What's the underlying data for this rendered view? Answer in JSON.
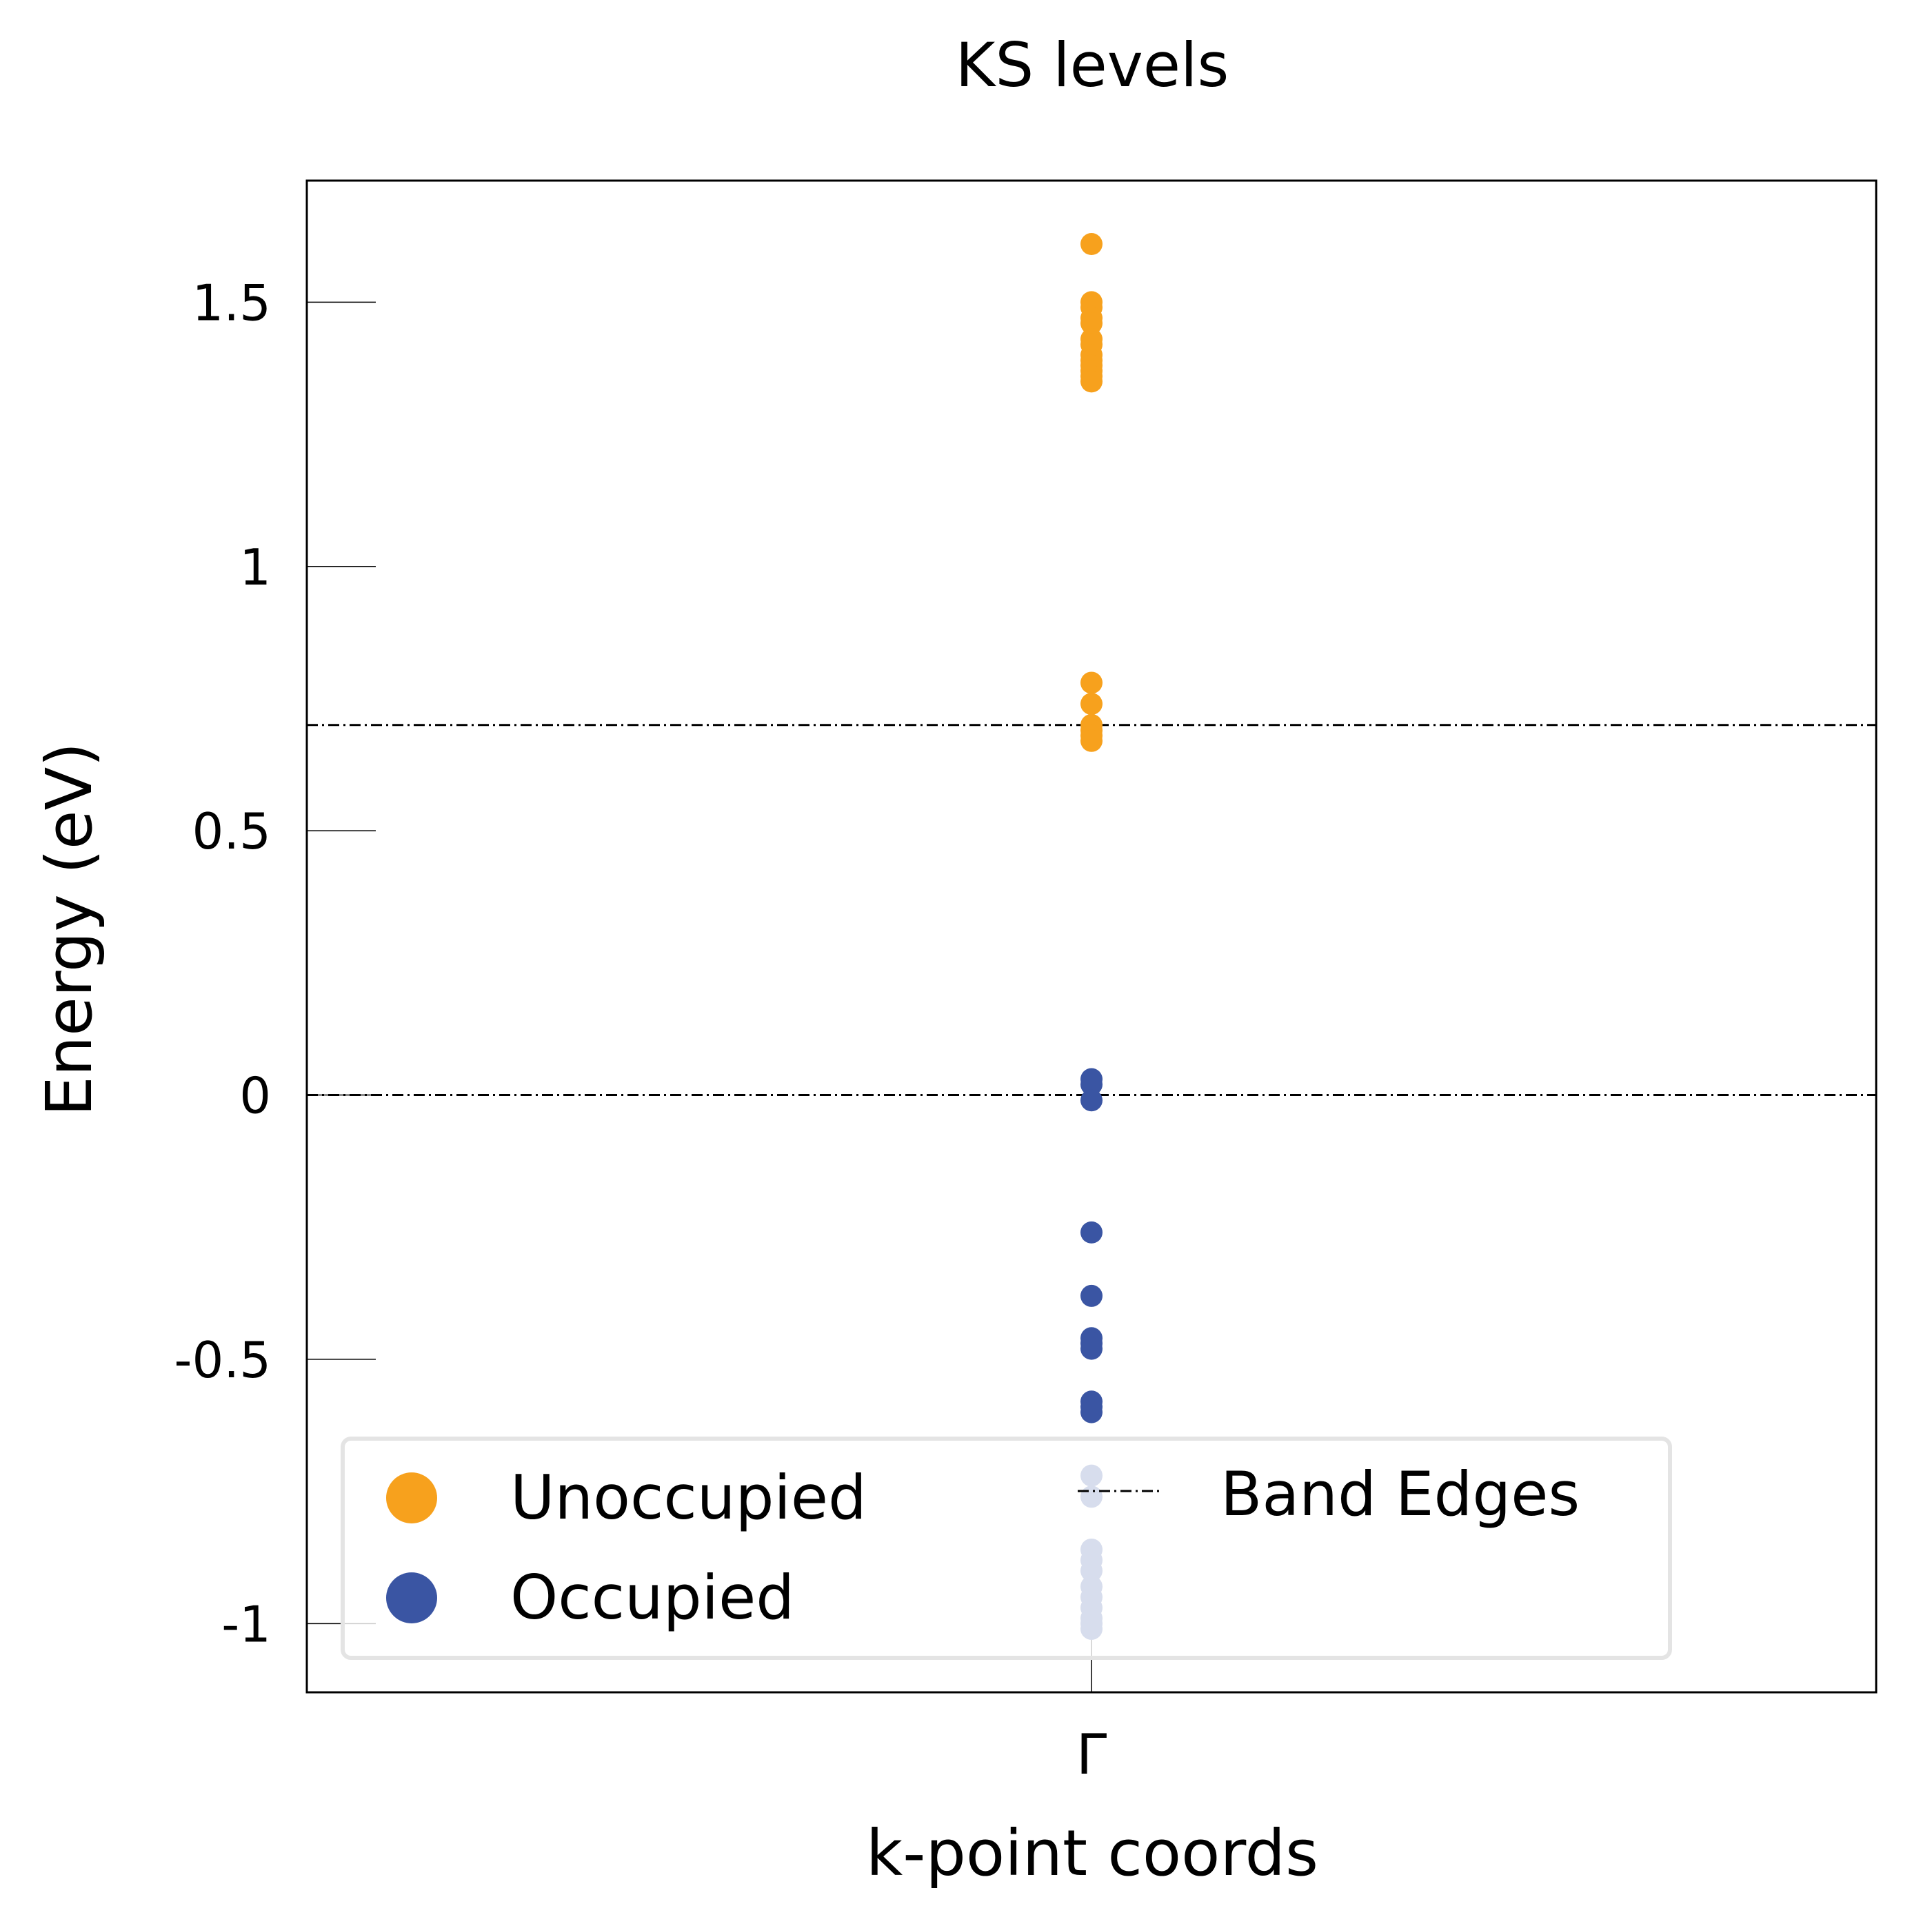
{
  "chart_data": {
    "type": "scatter",
    "title": "KS levels",
    "xlabel": "k-point coords",
    "ylabel": "Energy (eV)",
    "ylim": [
      -1.13,
      1.73
    ],
    "xlim": [
      -1,
      1
    ],
    "grid": false,
    "legend_position": "lower-left",
    "x_ticks": [
      {
        "value": 0,
        "label": "Γ"
      }
    ],
    "y_ticks": [
      {
        "value": 1.5,
        "label": "1.5"
      },
      {
        "value": 1,
        "label": "1"
      },
      {
        "value": 0.5,
        "label": "0.5"
      },
      {
        "value": 0,
        "label": "0"
      },
      {
        "value": -0.5,
        "label": "-0.5"
      },
      {
        "value": -1,
        "label": "-1"
      }
    ],
    "series": [
      {
        "name": "Unoccupied",
        "color": "#F7A11D",
        "x": [
          0,
          0,
          0,
          0,
          0,
          0,
          0,
          0,
          0,
          0,
          0,
          0,
          0,
          0,
          0,
          0,
          0,
          0,
          0
        ],
        "y": [
          1.61,
          1.5,
          1.49,
          1.47,
          1.46,
          1.43,
          1.42,
          1.4,
          1.39,
          1.38,
          1.37,
          1.36,
          1.35,
          0.78,
          0.74,
          0.7,
          0.69,
          0.68,
          0.67
        ]
      },
      {
        "name": "Occupied",
        "color": "#3A55A3",
        "x": [
          0,
          0,
          0,
          0,
          0,
          0,
          0,
          0,
          0,
          0,
          0,
          0,
          0,
          0,
          0,
          0,
          0,
          0,
          0,
          0,
          0,
          0
        ],
        "y": [
          0.03,
          0.02,
          -0.01,
          -0.26,
          -0.38,
          -0.46,
          -0.47,
          -0.48,
          -0.58,
          -0.59,
          -0.6,
          -0.72,
          -0.76,
          -0.86,
          -0.88,
          -0.9,
          -0.93,
          -0.95,
          -0.97,
          -0.99,
          -1.0,
          -1.01
        ]
      }
    ],
    "band_edges": {
      "name": "Band Edges",
      "color": "#000000",
      "style": "dash-dot",
      "values": [
        0.7,
        0.0
      ]
    }
  }
}
